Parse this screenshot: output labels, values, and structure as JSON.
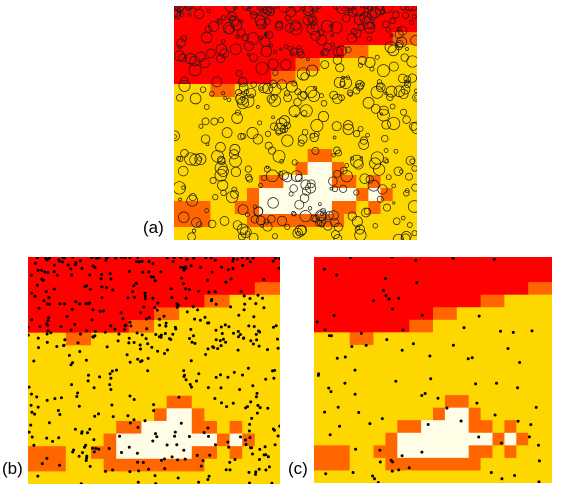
{
  "figure": {
    "colors": {
      "red": "#ff0000",
      "orange": "#ff6600",
      "yellow": "#ffd700",
      "cream": "#fffde6",
      "circle_stroke": "#1a1a1a",
      "dot_fill": "#000000"
    },
    "panels": [
      {
        "id": "a",
        "label": "(a)",
        "marker": "open-circles",
        "density": "high"
      },
      {
        "id": "b",
        "label": "(b)",
        "marker": "filled-dots",
        "density": "high"
      },
      {
        "id": "c",
        "label": "(c)",
        "marker": "filled-dots",
        "density": "low"
      }
    ]
  }
}
